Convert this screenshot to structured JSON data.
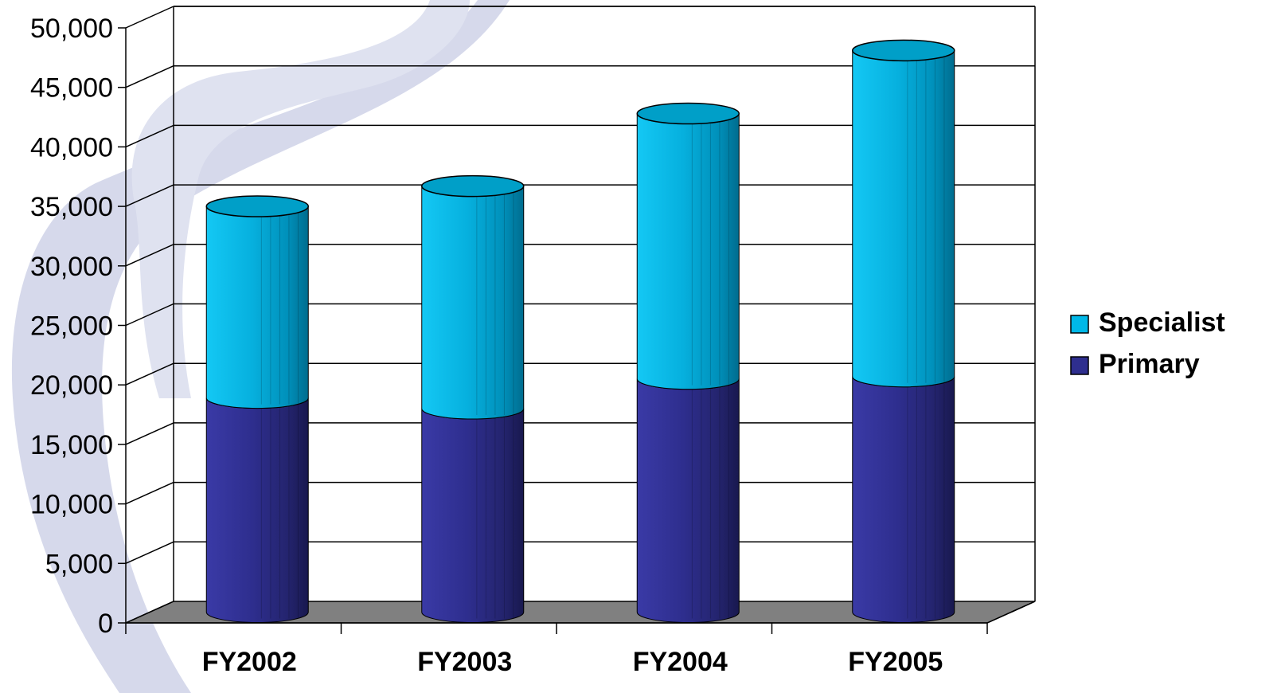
{
  "chart_data": {
    "type": "bar",
    "stacked": true,
    "style": "3d-cylinder",
    "categories": [
      "FY2002",
      "FY2003",
      "FY2004",
      "FY2005"
    ],
    "series": [
      {
        "name": "Primary",
        "values": [
          18000,
          17100,
          19600,
          19800
        ],
        "color": "#2e2e8e"
      },
      {
        "name": "Specialist",
        "values": [
          16100,
          18700,
          22300,
          27400
        ],
        "color": "#00b8e8"
      }
    ],
    "y_ticks": [
      "0",
      "5,000",
      "10,000",
      "15,000",
      "20,000",
      "25,000",
      "30,000",
      "35,000",
      "40,000",
      "45,000",
      "50,000"
    ],
    "ylim": [
      0,
      50000
    ],
    "grid": true,
    "legend": {
      "position": "right",
      "items": [
        "Specialist",
        "Primary"
      ]
    },
    "background_watermark_color": "#d4d8ea",
    "floor_color": "#808080"
  }
}
